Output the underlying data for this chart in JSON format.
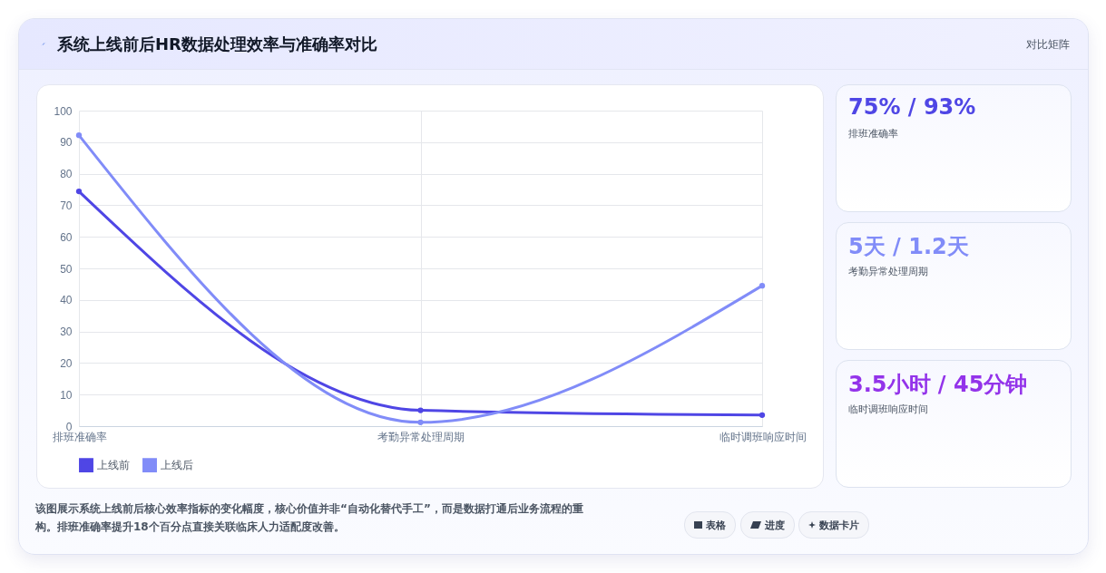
{
  "chart_data": [
    {
      "type": "line",
      "title": "系统上线前后HR数据处理效率与准确率对比",
      "categories": [
        "排班准确率",
        "考勤异常处理周期",
        "临时调班响应时间"
      ],
      "series": [
        {
          "name": "上线前",
          "color": "#4f46e5",
          "values": [
            74.4,
            5,
            3.5
          ]
        },
        {
          "name": "上线后",
          "color": "#818cf8",
          "values": [
            92.2,
            1.2,
            44.5
          ]
        }
      ],
      "ylim": [
        0,
        100
      ],
      "yticks": [
        0,
        10,
        20,
        30,
        40,
        50,
        60,
        70,
        80,
        90,
        100
      ],
      "grid": true,
      "legend": "bottom",
      "marker": "circle",
      "line_style": "solid",
      "annotations": [
        "对比矩阵",
        "该图展示系统上线前后核心效率指标的变化幅度，核心价值并非“自动化替代手工”，而是数据打通后业务流程的重构。排班准确率提升18个百分点直接关联临床人力适配度改善。",
        "表格",
        "进度",
        "数据卡片"
      ]
    },
    {
      "type": "other",
      "annotations": [
        "75% / 93%",
        "排班准确率",
        "5天 / 1.2天",
        "考勤异常处理周期",
        "3.5小时 / 45分钟",
        "临时调班响应时间"
      ]
    }
  ]
}
